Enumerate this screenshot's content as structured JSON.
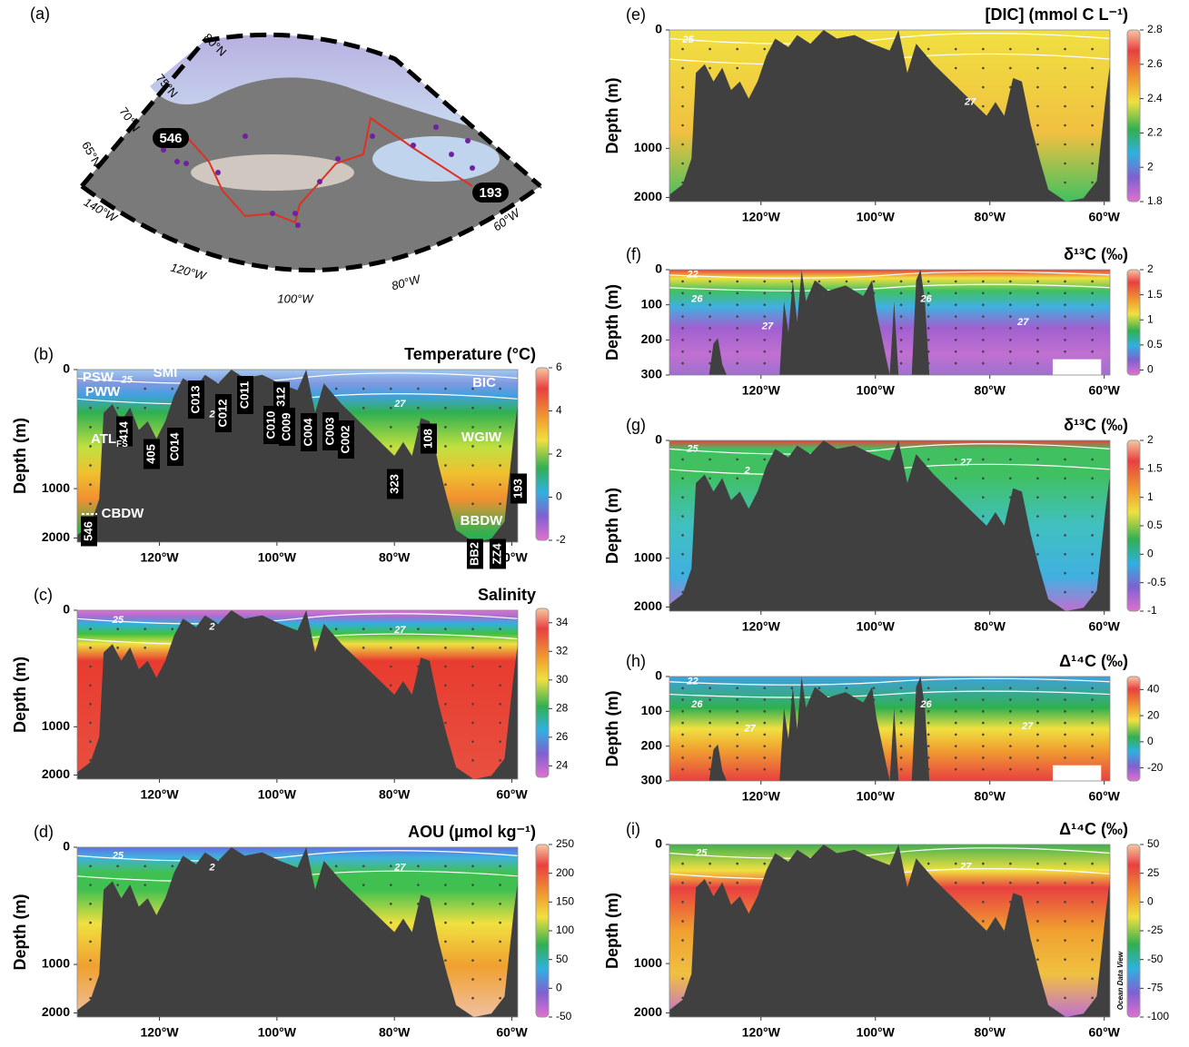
{
  "map": {
    "label": "(a)",
    "latitudes": [
      "80°N",
      "75°N",
      "70°N",
      "65°N"
    ],
    "longitudes": [
      "140°W",
      "120°W",
      "100°W",
      "80°W",
      "60°W"
    ],
    "stations": [
      "546",
      "193"
    ]
  },
  "chart_data": [
    {
      "type": "section",
      "panel": "(b)",
      "title": "Temperature (°C)",
      "y_label": "Depth (m)",
      "xlim": [
        -134,
        -59
      ],
      "xticks": [
        {
          "value": -120,
          "label": "120°W"
        },
        {
          "value": -100,
          "label": "100°W"
        },
        {
          "value": -80,
          "label": "80°W"
        },
        {
          "value": -60,
          "label": "60°W"
        }
      ],
      "ylim": [
        0,
        2100
      ],
      "yticks": [
        0,
        1000,
        2000
      ],
      "y_scale": "sqrt",
      "colorbar": {
        "lim": [
          -2,
          6
        ],
        "ticks": [
          6,
          4,
          2,
          0,
          -2
        ]
      },
      "contour_labels": [
        "25",
        "27",
        "2"
      ],
      "station_labels": [
        "546",
        "414",
        "405",
        "C014",
        "C013",
        "C012",
        "C011",
        "C010",
        "312",
        "C009",
        "C004",
        "C003",
        "C002",
        "323",
        "108",
        "193",
        "BB2",
        "ZZ4"
      ],
      "water_masses": [
        {
          "name": "PSW"
        },
        {
          "name": "SMI"
        },
        {
          "name": "PWW"
        },
        {
          "name": "BIC"
        },
        {
          "name": "ATL",
          "subscript": "FS"
        },
        {
          "name": "WGIW"
        },
        {
          "name": "CBDW"
        },
        {
          "name": "BBDW"
        }
      ]
    },
    {
      "type": "section",
      "panel": "(c)",
      "title": "Salinity",
      "y_label": "Depth (m)",
      "xlim": [
        -134,
        -59
      ],
      "xticks": [
        {
          "value": -120,
          "label": "120°W"
        },
        {
          "value": -100,
          "label": "100°W"
        },
        {
          "value": -80,
          "label": "80°W"
        },
        {
          "value": -60,
          "label": "60°W"
        }
      ],
      "ylim": [
        0,
        2100
      ],
      "yticks": [
        0,
        1000,
        2000
      ],
      "y_scale": "sqrt",
      "colorbar": {
        "lim": [
          23.2,
          35
        ],
        "ticks": [
          34,
          32,
          30,
          28,
          26,
          24
        ]
      },
      "contour_labels": [
        "25",
        "27",
        "2"
      ]
    },
    {
      "type": "section",
      "panel": "(d)",
      "title": "AOU (µmol kg⁻¹)",
      "y_label": "Depth (m)",
      "xlim": [
        -134,
        -59
      ],
      "xticks": [
        {
          "value": -120,
          "label": "120°W"
        },
        {
          "value": -100,
          "label": "100°W"
        },
        {
          "value": -80,
          "label": "80°W"
        },
        {
          "value": -60,
          "label": "60°W"
        }
      ],
      "ylim": [
        0,
        2100
      ],
      "yticks": [
        0,
        1000,
        2000
      ],
      "y_scale": "sqrt",
      "colorbar": {
        "lim": [
          -50,
          250
        ],
        "ticks": [
          250,
          200,
          150,
          100,
          50,
          0,
          -50
        ]
      },
      "contour_labels": [
        "25",
        "27",
        "2"
      ]
    },
    {
      "type": "section",
      "panel": "(e)",
      "title": "[DIC] (mmol C L⁻¹)",
      "y_label": "Depth (m)",
      "xlim": [
        -136,
        -59
      ],
      "xticks": [
        {
          "value": -120,
          "label": "120°W"
        },
        {
          "value": -100,
          "label": "100°W"
        },
        {
          "value": -80,
          "label": "80°W"
        },
        {
          "value": -60,
          "label": "60°W"
        }
      ],
      "ylim": [
        0,
        2100
      ],
      "yticks": [
        0,
        1000,
        2000
      ],
      "y_scale": "sqrt",
      "colorbar": {
        "lim": [
          1.8,
          2.8
        ],
        "ticks": [
          2.8,
          2.6,
          2.4,
          2.2,
          2,
          1.8
        ]
      },
      "contour_labels": [
        "25",
        "27"
      ]
    },
    {
      "type": "section",
      "panel": "(f)",
      "title": "δ¹³C (‰)",
      "y_label": "Depth (m)",
      "xlim": [
        -136,
        -59
      ],
      "xticks": [
        {
          "value": -120,
          "label": "120°W"
        },
        {
          "value": -100,
          "label": "100°W"
        },
        {
          "value": -80,
          "label": "80°W"
        },
        {
          "value": -60,
          "label": "60°W"
        }
      ],
      "ylim": [
        0,
        300
      ],
      "yticks": [
        0,
        100,
        200,
        300
      ],
      "y_scale": "linear",
      "colorbar": {
        "lim": [
          -0.1,
          2
        ],
        "ticks": [
          2,
          1.5,
          1,
          0.5,
          0
        ]
      },
      "contour_labels": [
        "22",
        "26",
        "27",
        "26",
        "27"
      ]
    },
    {
      "type": "section",
      "panel": "(g)",
      "title": "δ¹³C (‰)",
      "y_label": "Depth (m)",
      "xlim": [
        -136,
        -59
      ],
      "xticks": [
        {
          "value": -120,
          "label": "120°W"
        },
        {
          "value": -100,
          "label": "100°W"
        },
        {
          "value": -80,
          "label": "80°W"
        },
        {
          "value": -60,
          "label": "60°W"
        }
      ],
      "ylim": [
        0,
        2100
      ],
      "yticks": [
        0,
        1000,
        2000
      ],
      "y_scale": "sqrt",
      "colorbar": {
        "lim": [
          -1,
          2
        ],
        "ticks": [
          2,
          1.5,
          1,
          0.5,
          0,
          -0.5,
          -1
        ]
      },
      "contour_labels": [
        "25",
        "2",
        "27"
      ]
    },
    {
      "type": "section",
      "panel": "(h)",
      "title": "Δ¹⁴C (‰)",
      "y_label": "Depth (m)",
      "xlim": [
        -136,
        -59
      ],
      "xticks": [
        {
          "value": -120,
          "label": "120°W"
        },
        {
          "value": -100,
          "label": "100°W"
        },
        {
          "value": -80,
          "label": "80°W"
        },
        {
          "value": -60,
          "label": "60°W"
        }
      ],
      "ylim": [
        0,
        300
      ],
      "yticks": [
        0,
        100,
        200,
        300
      ],
      "y_scale": "linear",
      "colorbar": {
        "lim": [
          -30,
          50
        ],
        "ticks": [
          40,
          20,
          0,
          -20
        ]
      },
      "contour_labels": [
        "22",
        "26",
        "27",
        "26",
        "27"
      ]
    },
    {
      "type": "section",
      "panel": "(i)",
      "title": "Δ¹⁴C (‰)",
      "y_label": "Depth (m)",
      "xlim": [
        -136,
        -59
      ],
      "xticks": [
        {
          "value": -120,
          "label": "120°W"
        },
        {
          "value": -100,
          "label": "100°W"
        },
        {
          "value": -80,
          "label": "80°W"
        },
        {
          "value": -60,
          "label": "60°W"
        }
      ],
      "ylim": [
        0,
        2100
      ],
      "yticks": [
        0,
        1000,
        2000
      ],
      "y_scale": "sqrt",
      "colorbar": {
        "lim": [
          -100,
          50
        ],
        "ticks": [
          50,
          25,
          0,
          -25,
          -50,
          -75,
          -100
        ]
      },
      "contour_labels": [
        "25",
        "27"
      ],
      "watermark": "Ocean Data View"
    }
  ]
}
